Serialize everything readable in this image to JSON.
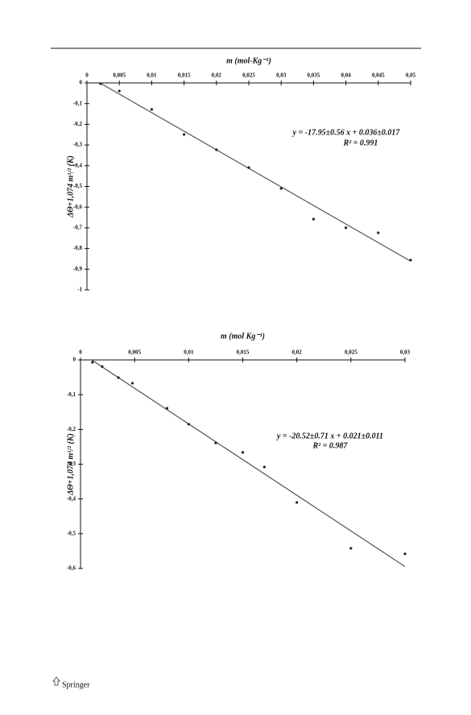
{
  "chart_data": [
    {
      "type": "scatter",
      "x_label": "m (mol-Kg⁻¹)",
      "y_label": "ΔΘ+1,074 m¹/² (K)",
      "annotations": [
        "y = -17.95±0.56 x + 0.036±0.017",
        "R² = 0.991"
      ],
      "xlim": [
        0,
        0.05
      ],
      "ylim": [
        -1,
        0
      ],
      "xticks": [
        0,
        {
          "value": 0.005,
          "label": "0,005"
        },
        {
          "value": 0.01,
          "label": "0,01"
        },
        {
          "value": 0.015,
          "label": "0,015"
        },
        {
          "value": 0.02,
          "label": "0,02"
        },
        {
          "value": 0.025,
          "label": "0,025"
        },
        {
          "value": 0.03,
          "label": "0,03"
        },
        {
          "value": 0.035,
          "label": "0,035"
        },
        {
          "value": 0.04,
          "label": "0,04"
        },
        {
          "value": 0.045,
          "label": "0,045"
        },
        {
          "value": 0.05,
          "label": "0,05"
        }
      ],
      "yticks": [
        0,
        {
          "value": -0.1,
          "label": "-0,1"
        },
        {
          "value": -0.2,
          "label": "-0,2"
        },
        {
          "value": -0.3,
          "label": "-0,3"
        },
        {
          "value": -0.4,
          "label": "-0,4"
        },
        {
          "value": -0.5,
          "label": "-0,5"
        },
        {
          "value": -0.6,
          "label": "-0,6"
        },
        {
          "value": -0.7,
          "label": "-0,7"
        },
        {
          "value": -0.8,
          "label": "-0,8"
        },
        {
          "value": -0.9,
          "label": "-0,9"
        },
        -1
      ],
      "x": [
        0.0021,
        0.005,
        0.01,
        0.015,
        0.02,
        0.025,
        0.03,
        0.035,
        0.04,
        0.045,
        0.05
      ],
      "values": [
        -0.004,
        -0.039,
        -0.128,
        -0.249,
        -0.323,
        -0.409,
        -0.51,
        -0.658,
        -0.7,
        -0.724,
        -0.856
      ],
      "color": "#222222",
      "fit": {
        "x": [
          0.002,
          0.05
        ],
        "values": [
          0.0001,
          -0.8615
        ],
        "color": "#555555"
      }
    },
    {
      "type": "scatter",
      "x_label": "m (mol Kg⁻¹)",
      "y_label": "ΔΘ+1,074 m¹/² (K)",
      "annotations": [
        "y = -20.52±0.71 x + 0.021±0.011",
        "R² = 0.987"
      ],
      "xlim": [
        0,
        0.03
      ],
      "ylim": [
        -0.6,
        0
      ],
      "xticks": [
        0,
        {
          "value": 0.005,
          "label": "0,005"
        },
        {
          "value": 0.01,
          "label": "0,01"
        },
        {
          "value": 0.015,
          "label": "0,015"
        },
        {
          "value": 0.02,
          "label": "0,02"
        },
        {
          "value": 0.025,
          "label": "0,025"
        },
        {
          "value": 0.03,
          "label": "0,03"
        }
      ],
      "yticks": [
        0,
        {
          "value": -0.1,
          "label": "-0,1"
        },
        {
          "value": -0.2,
          "label": "-0,2"
        },
        {
          "value": -0.3,
          "label": "-0,3"
        },
        {
          "value": -0.4,
          "label": "-0,4"
        },
        {
          "value": -0.5,
          "label": "-0,5"
        },
        {
          "value": -0.6,
          "label": "-0,6"
        }
      ],
      "x": [
        0.0011,
        0.002,
        0.0035,
        0.0048,
        0.008,
        0.01,
        0.0125,
        0.015,
        0.017,
        0.02,
        0.025,
        0.03
      ],
      "values": [
        -0.007,
        -0.019,
        -0.051,
        -0.067,
        -0.139,
        -0.185,
        -0.239,
        -0.266,
        -0.308,
        -0.41,
        -0.542,
        -0.558
      ],
      "color": "#222222",
      "fit": {
        "x": [
          0.001,
          0.03
        ],
        "values": [
          0.0005,
          -0.5946
        ],
        "color": "#555555"
      }
    }
  ],
  "footer": "Springer"
}
